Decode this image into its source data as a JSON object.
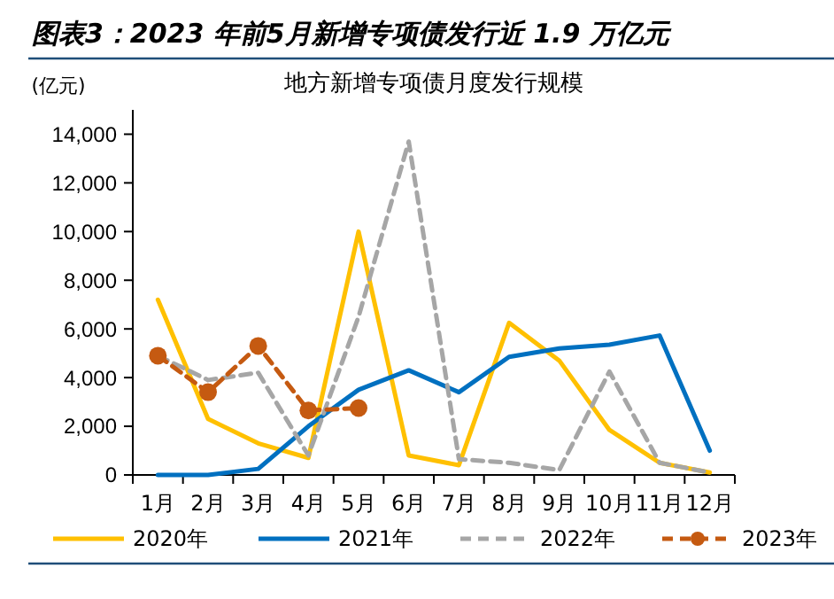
{
  "chart_data": {
    "type": "line",
    "title": "图表3：2023 年前5月新增专项债发行近 1.9 万亿元",
    "subtitle": "地方新增专项债月度发行规模",
    "ylabel": "(亿元)",
    "categories": [
      "1月",
      "2月",
      "3月",
      "4月",
      "5月",
      "6月",
      "7月",
      "8月",
      "9月",
      "10月",
      "11月",
      "12月"
    ],
    "series": [
      {
        "name": "2020年",
        "color": "#ffc000",
        "line_style": "solid",
        "marker": "none",
        "values": [
          7200,
          2300,
          1300,
          700,
          10000,
          800,
          400,
          6250,
          4700,
          1850,
          500,
          100
        ]
      },
      {
        "name": "2021年",
        "color": "#0070c0",
        "line_style": "solid",
        "marker": "none",
        "values": [
          0,
          0,
          250,
          2000,
          3500,
          4300,
          3400,
          4850,
          5200,
          5350,
          5730,
          1000
        ]
      },
      {
        "name": "2022年",
        "color": "#a6a6a6",
        "line_style": "dashed",
        "marker": "none",
        "values": [
          4900,
          3900,
          4200,
          800,
          6500,
          13700,
          650,
          500,
          200,
          4250,
          500,
          100
        ]
      },
      {
        "name": "2023年",
        "color": "#c55a11",
        "line_style": "dashed",
        "marker": "circle",
        "values": [
          4900,
          3400,
          5300,
          2650,
          2750,
          null,
          null,
          null,
          null,
          null,
          null,
          null
        ]
      }
    ],
    "ylim": [
      0,
      15000
    ],
    "yticks": [
      0,
      {
        "value": 2000,
        "label": "2,000"
      },
      {
        "value": 4000,
        "label": "4,000"
      },
      {
        "value": 6000,
        "label": "6,000"
      },
      {
        "value": 8000,
        "label": "8,000"
      },
      {
        "value": 10000,
        "label": "10,000"
      },
      {
        "value": 12000,
        "label": "12,000"
      },
      {
        "value": 14000,
        "label": "14,000"
      }
    ],
    "legend": "bottom"
  }
}
